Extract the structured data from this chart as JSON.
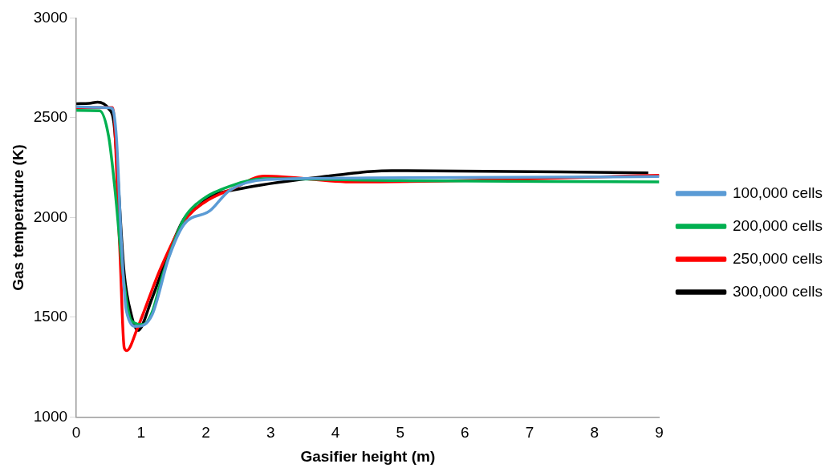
{
  "chart_data": {
    "type": "line",
    "xlabel": "Gasifier height (m)",
    "ylabel": "Gas temperature (K)",
    "xlim": [
      0,
      9
    ],
    "xticks": [
      0,
      1,
      2,
      3,
      4,
      5,
      6,
      7,
      8,
      9
    ],
    "ylim": [
      1000,
      3000
    ],
    "yticks": [
      1000,
      1500,
      2000,
      2500,
      3000
    ],
    "grid": false,
    "legend": "right",
    "marker": "none",
    "line_style": "solid",
    "series": [
      {
        "name": "100,000 cells",
        "color": "#5b9bd5",
        "x": [
          0,
          0.3,
          0.55,
          0.62,
          0.7,
          0.77,
          0.93,
          1.17,
          1.43,
          1.66,
          2.06,
          2.37,
          2.94,
          4.5,
          9
        ],
        "values": [
          2555,
          2552,
          2548,
          2400,
          1850,
          1537,
          1454,
          1512,
          1800,
          1964,
          2033,
          2136,
          2190,
          2198,
          2205
        ]
      },
      {
        "name": "200,000 cells",
        "color": "#00b050",
        "x": [
          0,
          0.36,
          0.5,
          0.6,
          0.72,
          0.85,
          1.03,
          1.17,
          1.34,
          1.66,
          1.88,
          2.4,
          2.9,
          5,
          9
        ],
        "values": [
          2537,
          2535,
          2405,
          2132,
          1719,
          1483,
          1463,
          1525,
          1719,
          1992,
          2074,
          2160,
          2194,
          2185,
          2178
        ]
      },
      {
        "name": "250,000 cells",
        "color": "#ff0000",
        "x": [
          0,
          0.56,
          0.67,
          0.74,
          0.78,
          0.94,
          1.3,
          1.66,
          1.97,
          2.42,
          2.9,
          4.29,
          9
        ],
        "values": [
          2550,
          2551,
          1855,
          1347,
          1333,
          1442,
          1744,
          1979,
          2074,
          2145,
          2207,
          2178,
          2211
        ]
      },
      {
        "name": "300,000 cells",
        "color": "#000000",
        "x": [
          0,
          0.2,
          0.33,
          0.5,
          0.58,
          0.74,
          0.85,
          0.95,
          1.17,
          1.43,
          1.66,
          1.88,
          2.06,
          2.55,
          3.88,
          4.55,
          4.87,
          8.83
        ],
        "values": [
          2570,
          2572,
          2578,
          2545,
          2475,
          1719,
          1512,
          1434,
          1595,
          1826,
          1992,
          2054,
          2103,
          2145,
          2207,
          2231,
          2235,
          2223
        ]
      }
    ]
  }
}
